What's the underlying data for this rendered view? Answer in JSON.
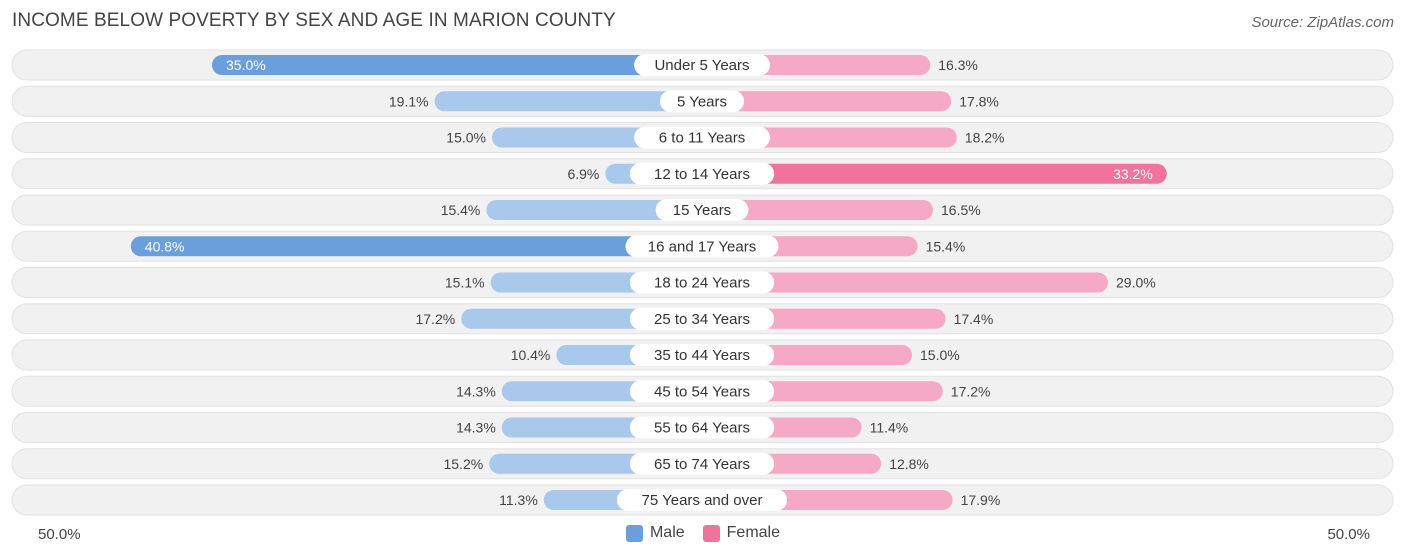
{
  "title": "INCOME BELOW POVERTY BY SEX AND AGE IN MARION COUNTY",
  "source": "Source: ZipAtlas.com",
  "colors": {
    "male_dark": "#6a9fdc",
    "male_light": "#a8c8ec",
    "female_dark": "#f0739e",
    "female_light": "#f6a9c4",
    "row_bg": "#f1f1f1",
    "row_border": "#e2e2e2"
  },
  "legend": {
    "male": "Male",
    "female": "Female"
  },
  "axis": {
    "left_label": "50.0%",
    "right_label": "50.0%"
  },
  "chart_data": {
    "type": "bar",
    "orientation": "horizontal-diverging",
    "title": "INCOME BELOW POVERTY BY SEX AND AGE IN MARION COUNTY",
    "categories": [
      "Under 5 Years",
      "5 Years",
      "6 to 11 Years",
      "12 to 14 Years",
      "15 Years",
      "16 and 17 Years",
      "18 to 24 Years",
      "25 to 34 Years",
      "35 to 44 Years",
      "45 to 54 Years",
      "55 to 64 Years",
      "65 to 74 Years",
      "75 Years and over"
    ],
    "series": [
      {
        "name": "Male",
        "values": [
          35.0,
          19.1,
          15.0,
          6.9,
          15.4,
          40.8,
          15.1,
          17.2,
          10.4,
          14.3,
          14.3,
          15.2,
          11.3
        ]
      },
      {
        "name": "Female",
        "values": [
          16.3,
          17.8,
          18.2,
          33.2,
          16.5,
          15.4,
          29.0,
          17.4,
          15.0,
          17.2,
          11.4,
          12.8,
          17.9
        ]
      }
    ],
    "value_labels": {
      "male": [
        "35.0%",
        "19.1%",
        "15.0%",
        "6.9%",
        "15.4%",
        "40.8%",
        "15.1%",
        "17.2%",
        "10.4%",
        "14.3%",
        "14.3%",
        "15.2%",
        "11.3%"
      ],
      "female": [
        "16.3%",
        "17.8%",
        "18.2%",
        "33.2%",
        "16.5%",
        "15.4%",
        "29.0%",
        "17.4%",
        "15.0%",
        "17.2%",
        "11.4%",
        "12.8%",
        "17.9%"
      ]
    },
    "xlim": [
      -50,
      50
    ],
    "xlabel_left": "50.0%",
    "xlabel_right": "50.0%",
    "legend_position": "bottom-center"
  }
}
